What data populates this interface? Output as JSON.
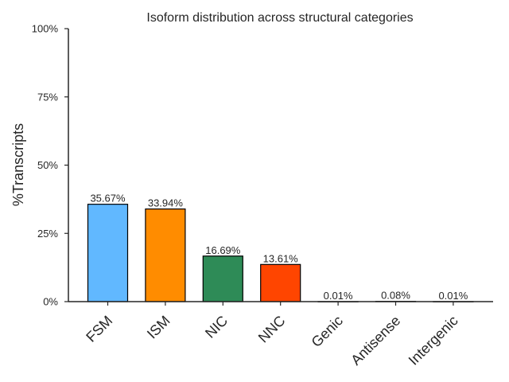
{
  "chart_data": {
    "type": "bar",
    "title": "Isoform distribution across structural categories",
    "ylabel": "%Transcripts",
    "xlabel": "",
    "ylim": [
      0,
      100
    ],
    "yticks": [
      "0%",
      "25%",
      "50%",
      "75%",
      "100%"
    ],
    "ytick_values": [
      0,
      25,
      50,
      75,
      100
    ],
    "categories": [
      "FSM",
      "ISM",
      "NIC",
      "NNC",
      "Genic",
      "Antisense",
      "Intergenic"
    ],
    "values": [
      35.67,
      33.94,
      16.69,
      13.61,
      0.01,
      0.08,
      0.01
    ],
    "data_labels": [
      "35.67%",
      "33.94%",
      "16.69%",
      "13.61%",
      "0.01%",
      "0.08%",
      "0.01%"
    ],
    "colors": [
      "#61B8FF",
      "#FF8C00",
      "#2E8B57",
      "#FF4500",
      "#FFFFFF",
      "#FFFFFF",
      "#FFFFFF"
    ],
    "grid": false,
    "legend": "none"
  }
}
